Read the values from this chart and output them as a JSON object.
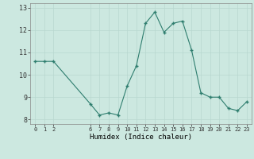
{
  "x": [
    0,
    1,
    2,
    6,
    7,
    8,
    9,
    10,
    11,
    12,
    13,
    14,
    15,
    16,
    17,
    18,
    19,
    20,
    21,
    22,
    23
  ],
  "y": [
    10.6,
    10.6,
    10.6,
    8.7,
    8.2,
    8.3,
    8.2,
    9.5,
    10.4,
    12.3,
    12.8,
    11.9,
    12.3,
    12.4,
    11.1,
    9.2,
    9.0,
    9.0,
    8.5,
    8.4,
    8.8
  ],
  "line_color": "#2e7d6e",
  "marker_color": "#2e7d6e",
  "bg_color": "#cce8e0",
  "grid_color": "#b8d8d0",
  "xlabel": "Humidex (Indice chaleur)",
  "xlim": [
    -0.5,
    23.5
  ],
  "ylim": [
    7.8,
    13.2
  ],
  "yticks": [
    8,
    9,
    10,
    11,
    12,
    13
  ],
  "xticks": [
    0,
    1,
    2,
    6,
    7,
    8,
    9,
    10,
    11,
    12,
    13,
    14,
    15,
    16,
    17,
    18,
    19,
    20,
    21,
    22,
    23
  ]
}
